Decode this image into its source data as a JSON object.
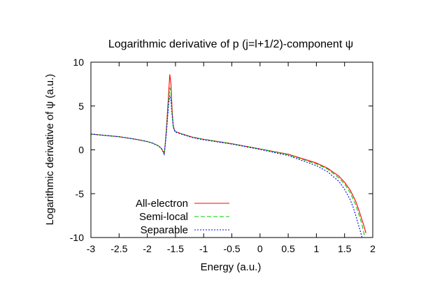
{
  "chart_data": {
    "type": "line",
    "title": "Logarithmic derivative of p (j=l+1/2)-component ψ",
    "xlabel": "Energy (a.u.)",
    "ylabel": "Logarithmic derivative of ψ (a.u.)",
    "xlim": [
      -3,
      2
    ],
    "ylim": [
      -10,
      10
    ],
    "xticks": [
      -3,
      -2.5,
      -2,
      -1.5,
      -1,
      -0.5,
      0,
      0.5,
      1,
      1.5,
      2
    ],
    "xtick_labels": [
      "-3",
      "-2.5",
      "-2",
      "-1.5",
      "-1",
      "-0.5",
      "0",
      "0.5",
      "1",
      "1.5",
      "2"
    ],
    "yticks": [
      -10,
      -5,
      0,
      5,
      10
    ],
    "ytick_labels": [
      "-10",
      "-5",
      "0",
      "5",
      "10"
    ],
    "grid": false,
    "legend_position": "bottom-left",
    "series": [
      {
        "name": "All-electron",
        "color": "#ff0000",
        "dash": "solid",
        "x": [
          -3.0,
          -2.5,
          -2.2,
          -2.0,
          -1.9,
          -1.8,
          -1.75,
          -1.72,
          -1.7,
          -1.68,
          -1.66,
          -1.64,
          -1.62,
          -1.6,
          -1.58,
          -1.56,
          -1.54,
          -1.52,
          -1.5,
          -1.4,
          -1.2,
          -1.0,
          -0.5,
          0.0,
          0.5,
          1.0,
          1.2,
          1.4,
          1.5,
          1.6,
          1.7,
          1.75,
          1.8,
          1.84,
          1.88
        ],
        "y": [
          1.8,
          1.5,
          1.2,
          0.95,
          0.75,
          0.45,
          0.15,
          -0.2,
          -0.5,
          0.8,
          2.5,
          4.5,
          6.5,
          8.6,
          7.5,
          4.5,
          2.8,
          2.3,
          2.1,
          1.85,
          1.45,
          1.2,
          0.7,
          0.1,
          -0.5,
          -1.5,
          -2.1,
          -3.0,
          -3.7,
          -4.6,
          -5.9,
          -6.8,
          -7.8,
          -8.6,
          -9.5
        ]
      },
      {
        "name": "Semi-local",
        "color": "#00cc00",
        "dash": "6,3",
        "x": [
          -3.0,
          -2.5,
          -2.2,
          -2.0,
          -1.9,
          -1.8,
          -1.75,
          -1.72,
          -1.7,
          -1.68,
          -1.66,
          -1.64,
          -1.62,
          -1.6,
          -1.58,
          -1.56,
          -1.54,
          -1.52,
          -1.5,
          -1.4,
          -1.2,
          -1.0,
          -0.5,
          0.0,
          0.5,
          1.0,
          1.2,
          1.4,
          1.5,
          1.6,
          1.7,
          1.75,
          1.8,
          1.83,
          1.86
        ],
        "y": [
          1.8,
          1.5,
          1.2,
          0.95,
          0.75,
          0.45,
          0.15,
          -0.2,
          -0.5,
          0.7,
          2.2,
          4.0,
          5.8,
          7.1,
          6.5,
          4.2,
          2.7,
          2.3,
          2.1,
          1.85,
          1.45,
          1.2,
          0.7,
          0.1,
          -0.55,
          -1.6,
          -2.2,
          -3.2,
          -3.9,
          -4.9,
          -6.3,
          -7.3,
          -8.3,
          -9.1,
          -10.0
        ]
      },
      {
        "name": "Separable",
        "color": "#0000ff",
        "dash": "2,2",
        "x": [
          -3.0,
          -2.5,
          -2.2,
          -2.0,
          -1.9,
          -1.8,
          -1.75,
          -1.72,
          -1.7,
          -1.68,
          -1.66,
          -1.64,
          -1.62,
          -1.6,
          -1.58,
          -1.56,
          -1.54,
          -1.52,
          -1.5,
          -1.4,
          -1.2,
          -1.0,
          -0.5,
          0.0,
          0.5,
          1.0,
          1.2,
          1.4,
          1.5,
          1.6,
          1.65,
          1.7,
          1.74,
          1.78,
          1.81
        ],
        "y": [
          1.8,
          1.5,
          1.2,
          0.95,
          0.75,
          0.45,
          0.15,
          -0.2,
          -0.5,
          0.6,
          2.0,
          3.6,
          5.2,
          6.2,
          5.6,
          3.9,
          2.6,
          2.2,
          2.0,
          1.8,
          1.4,
          1.15,
          0.65,
          0.05,
          -0.65,
          -1.8,
          -2.5,
          -3.6,
          -4.5,
          -5.7,
          -6.5,
          -7.5,
          -8.4,
          -9.3,
          -10.0
        ]
      }
    ]
  }
}
